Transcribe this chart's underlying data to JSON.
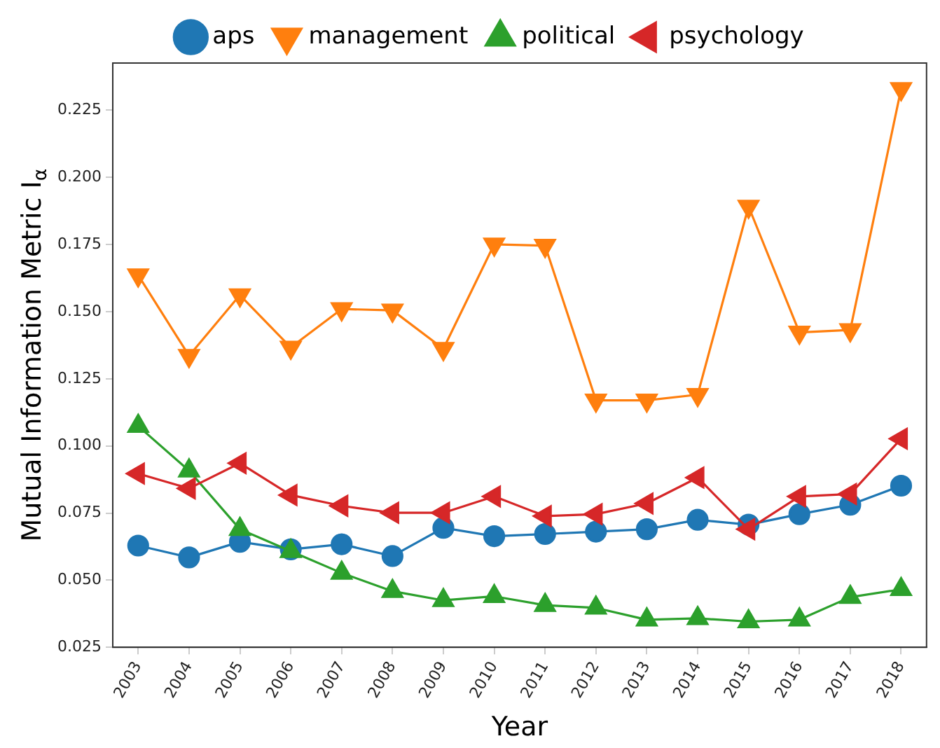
{
  "chart_data": {
    "type": "line",
    "xlabel": "Year",
    "ylabel": "Mutual Information Metric I$_{α}$",
    "categories": [
      "2003",
      "2004",
      "2005",
      "2006",
      "2007",
      "2008",
      "2009",
      "2010",
      "2011",
      "2012",
      "2013",
      "2014",
      "2015",
      "2016",
      "2017",
      "2018"
    ],
    "series": [
      {
        "name": "aps",
        "color": "#1f77b4",
        "marker": "circle",
        "values": [
          0.0629,
          0.0585,
          0.0643,
          0.0615,
          0.0634,
          0.059,
          0.0695,
          0.0664,
          0.0672,
          0.0681,
          0.069,
          0.0725,
          0.0707,
          0.0746,
          0.0781,
          0.0852
        ]
      },
      {
        "name": "management",
        "color": "#ff7f0e",
        "marker": "triangle_down",
        "values": [
          0.1636,
          0.1336,
          0.1562,
          0.1367,
          0.151,
          0.1505,
          0.1362,
          0.1751,
          0.1746,
          0.117,
          0.117,
          0.1191,
          0.1892,
          0.1423,
          0.1432,
          0.233
        ]
      },
      {
        "name": "political",
        "color": "#2ca02c",
        "marker": "triangle",
        "values": [
          0.1074,
          0.0908,
          0.069,
          0.0608,
          0.0527,
          0.0459,
          0.0425,
          0.044,
          0.0407,
          0.0397,
          0.0353,
          0.0358,
          0.0346,
          0.0353,
          0.0437,
          0.0466
        ]
      },
      {
        "name": "psychology",
        "color": "#d62728",
        "marker": "triangle_left",
        "values": [
          0.0897,
          0.0842,
          0.0936,
          0.0817,
          0.0777,
          0.0751,
          0.0751,
          0.0812,
          0.0739,
          0.0746,
          0.0786,
          0.0882,
          0.069,
          0.0812,
          0.0821,
          0.1027
        ]
      }
    ],
    "ylim": [
      0.025,
      0.2426
    ],
    "yticks": [
      0.025,
      {
        "value": 0.05,
        "label": "0.050"
      },
      0.075,
      {
        "value": 0.1,
        "label": "0.100"
      },
      0.125,
      {
        "value": 0.15,
        "label": "0.150"
      },
      0.175,
      {
        "value": 0.2,
        "label": "0.200"
      },
      0.225
    ],
    "grid": false,
    "legend": "top",
    "line_style": "solid"
  }
}
